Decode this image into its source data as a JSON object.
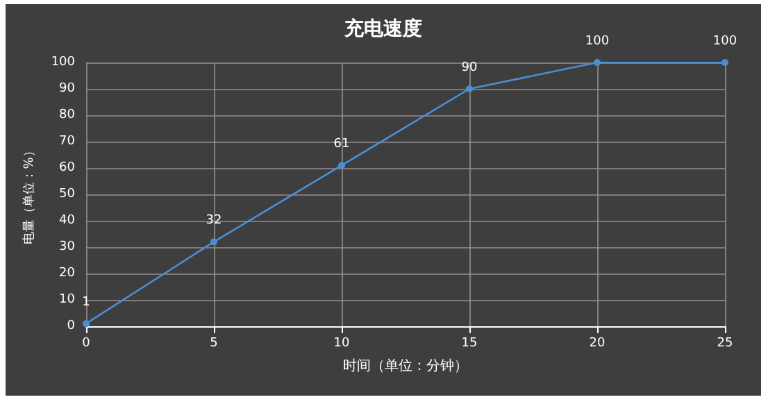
{
  "chart_data": {
    "type": "line",
    "title": "充电速度",
    "xlabel": "时间（单位：分钟）",
    "ylabel": "电量（单位：%）",
    "x": [
      0,
      5,
      10,
      15,
      20,
      25
    ],
    "series": [
      {
        "color": "#4a8fd4",
        "values": [
          1,
          32,
          61,
          90,
          100,
          100
        ]
      }
    ],
    "xlim": [
      0,
      25
    ],
    "xticks": [
      0,
      5,
      10,
      15,
      20,
      25
    ],
    "ylim": [
      0,
      100
    ],
    "yticks": [
      0,
      10,
      20,
      30,
      40,
      50,
      60,
      70,
      80,
      90,
      100
    ],
    "grid": true,
    "marker": "circle",
    "line_style": "solid",
    "data_labels": true
  }
}
